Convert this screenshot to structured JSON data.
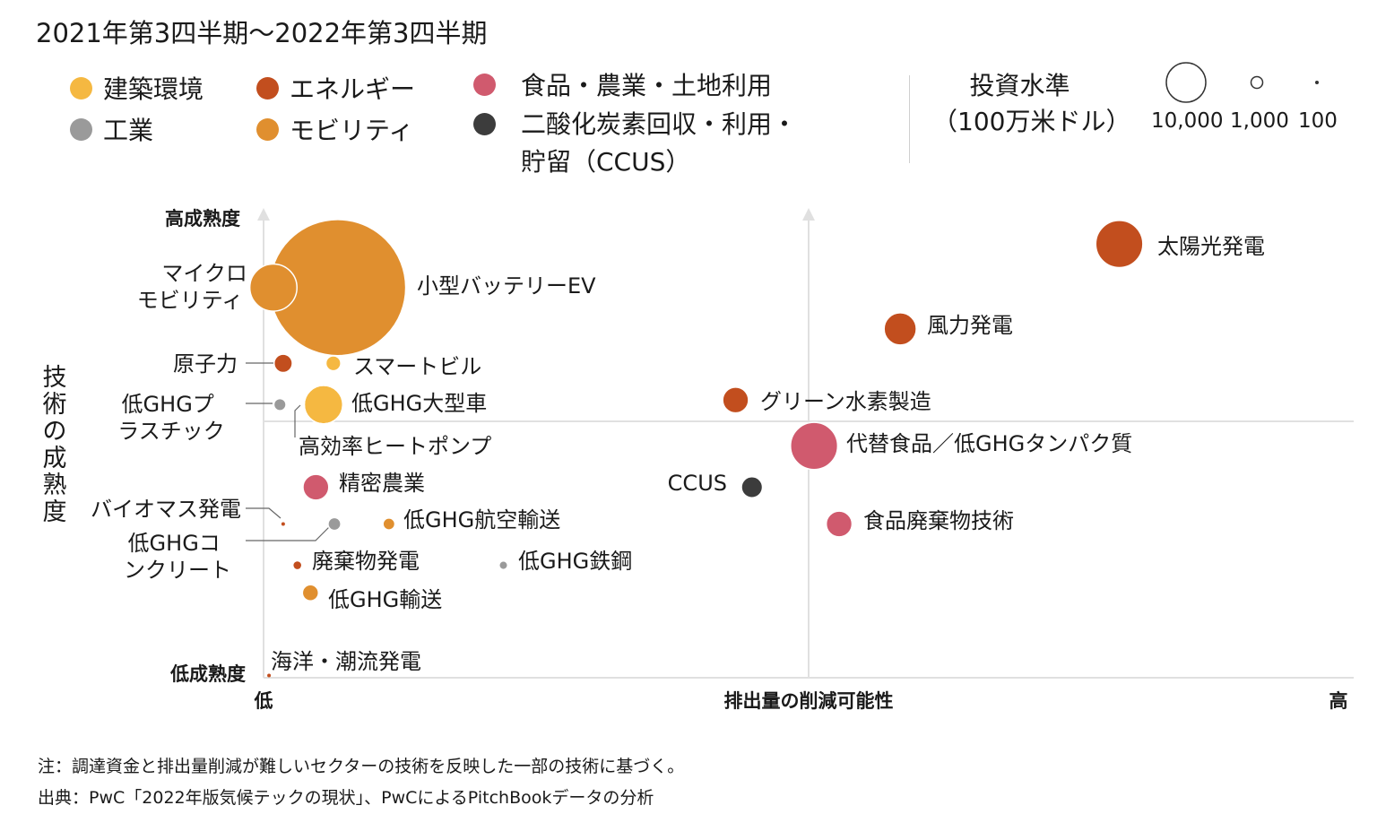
{
  "title": "2021年第3四半期～2022年第3四半期",
  "colors": {
    "building": "#F5B841",
    "energy": "#C24E1E",
    "food": "#D05A6E",
    "industry": "#9A9A9A",
    "mobility": "#E08F2F",
    "ccus": "#3C3C3C",
    "axis": "#e0e0e0"
  },
  "legend": {
    "building": "建築環境",
    "energy": "エネルギー",
    "food": "食品・農業・土地利用",
    "industry": "工業",
    "mobility": "モビリティ",
    "ccus_line1": "二酸化炭素回収・利用・",
    "ccus_line2": "貯留（CCUS）"
  },
  "size_legend": {
    "title_line1": "投資水準",
    "title_line2": "（100万米ドル）",
    "values": [
      "10,000",
      "1,000",
      "100"
    ]
  },
  "notes": {
    "note": "注：調達資金と排出量削減が難しいセクターの技術を反映した一部の技術に基づく。",
    "source": "出典：PwC「2022年版気候テックの現状」、PwCによるPitchBookデータの分析"
  },
  "chart_data": {
    "type": "scatter",
    "title": "2021年第3四半期～2022年第3四半期",
    "xlabel": "排出量の削減可能性",
    "ylabel": "技術の成熟度",
    "x_low_label": "低",
    "x_high_label": "高",
    "y_high_label": "高成熟度",
    "y_low_label": "低成熟度",
    "xlim": [
      0,
      100
    ],
    "ylim": [
      0,
      100
    ],
    "size_unit": "投資水準（100万米ドル）",
    "points": [
      {
        "label": "小型バッテリーEV",
        "category": "mobility",
        "x": 6.8,
        "y": 85,
        "size": 25000
      },
      {
        "label": "マイクロモビリティ",
        "category": "mobility",
        "x": 0.9,
        "y": 85,
        "size": 3000
      },
      {
        "label": "太陽光発電",
        "category": "energy",
        "x": 78.5,
        "y": 94.5,
        "size": 3000
      },
      {
        "label": "風力発電",
        "category": "energy",
        "x": 58.4,
        "y": 76,
        "size": 1400
      },
      {
        "label": "原子力",
        "category": "energy",
        "x": 1.8,
        "y": 68.5,
        "size": 450
      },
      {
        "label": "スマートビル",
        "category": "building",
        "x": 6.4,
        "y": 68.5,
        "size": 300
      },
      {
        "label": "低GHGプラスチック",
        "category": "industry",
        "x": 1.5,
        "y": 59.5,
        "size": 200
      },
      {
        "label": "低GHG大型車",
        "category": "building",
        "x": 5.5,
        "y": 59.5,
        "size": 2000
      },
      {
        "label": "高効率ヒートポンプ",
        "category": "building",
        "x": 5.5,
        "y": 59.5,
        "size": 2000
      },
      {
        "label": "グリーン水素製造",
        "category": "energy",
        "x": 43.3,
        "y": 60.5,
        "size": 900
      },
      {
        "label": "代替食品／低GHGタンパク質",
        "category": "food",
        "x": 50.5,
        "y": 50.5,
        "size": 3000
      },
      {
        "label": "精密農業",
        "category": "food",
        "x": 4.8,
        "y": 41.5,
        "size": 900
      },
      {
        "label": "CCUS",
        "category": "ccus",
        "x": 44.8,
        "y": 41.5,
        "size": 600
      },
      {
        "label": "バイオマス発電",
        "category": "energy",
        "x": 1.8,
        "y": 33.5,
        "size": 12
      },
      {
        "label": "低GHGコンクリート",
        "category": "industry",
        "x": 6.5,
        "y": 33.5,
        "size": 220
      },
      {
        "label": "低GHG航空輸送",
        "category": "mobility",
        "x": 11.5,
        "y": 33.5,
        "size": 150
      },
      {
        "label": "食品廃棄物技術",
        "category": "food",
        "x": 52.8,
        "y": 33.5,
        "size": 900
      },
      {
        "label": "廃棄物発電",
        "category": "energy",
        "x": 3.1,
        "y": 24.5,
        "size": 80
      },
      {
        "label": "低GHG鉄鋼",
        "category": "industry",
        "x": 22.0,
        "y": 24.5,
        "size": 70
      },
      {
        "label": "低GHG輸送",
        "category": "mobility",
        "x": 4.3,
        "y": 18.5,
        "size": 350
      },
      {
        "label": "海洋・潮流発電",
        "category": "energy",
        "x": 0.5,
        "y": 0.5,
        "size": 10
      }
    ]
  }
}
